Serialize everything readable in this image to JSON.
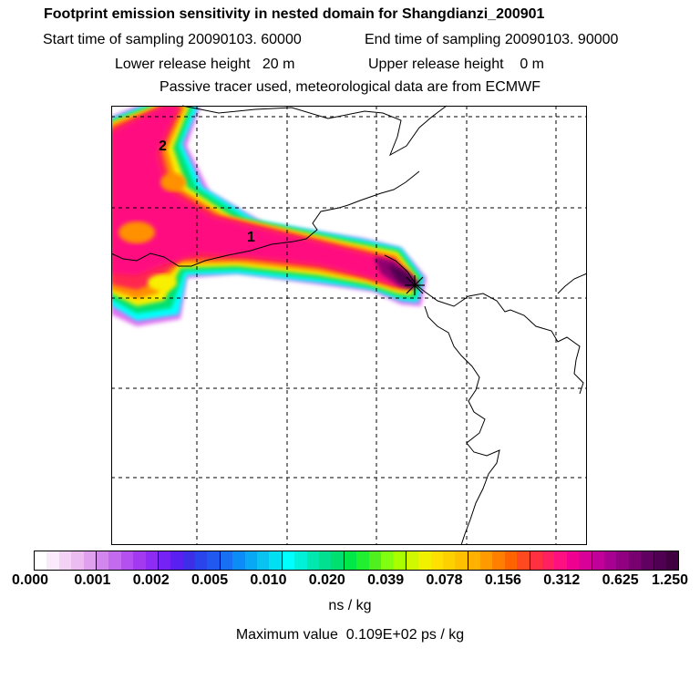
{
  "header": {
    "title": "Footprint emission sensitivity in nested domain for Shangdianzi_200901",
    "start_time": "Start time of sampling 20090103. 60000",
    "end_time": "End time of sampling 20090103. 90000",
    "lower_release": "Lower release height   20 m",
    "upper_release": "Upper release height    0 m",
    "tracer_note": "Passive tracer used, meteorological data are from ECMWF"
  },
  "map": {
    "labels": [
      "2",
      "1"
    ],
    "site_marker": "x-cross-marker"
  },
  "colorbar": {
    "tick_labels": [
      "0.000",
      "0.001",
      "0.002",
      "0.005",
      "0.010",
      "0.020",
      "0.039",
      "0.078",
      "0.156",
      "0.312",
      "0.625",
      "1.250"
    ],
    "colors": [
      "#ffffff",
      "#fbeafb",
      "#f4d2f6",
      "#ecbcf1",
      "#e0a0ee",
      "#d287ee",
      "#c46aee",
      "#b550f0",
      "#a33af0",
      "#8f2cf3",
      "#7422f5",
      "#5a20f2",
      "#3d2ee8",
      "#2a44ec",
      "#2058f0",
      "#1870f4",
      "#0c8cf6",
      "#08a8f4",
      "#0ac2f2",
      "#00e0f0",
      "#00ffff",
      "#00f0d8",
      "#00e8b0",
      "#00e090",
      "#00e070",
      "#00e848",
      "#20f030",
      "#50f020",
      "#80ff10",
      "#a8ff00",
      "#d0f800",
      "#f0f000",
      "#ffe000",
      "#ffd000",
      "#ffc000",
      "#ffb000",
      "#ff9a00",
      "#ff8000",
      "#ff6400",
      "#ff4a20",
      "#ff3040",
      "#ff2060",
      "#ff1080",
      "#f00090",
      "#d80098",
      "#c00098",
      "#a80090",
      "#900080",
      "#780070",
      "#600060",
      "#500050",
      "#400040"
    ],
    "units": "ns / kg"
  },
  "footer": {
    "max_value": "Maximum value  0.109E+02 ps / kg"
  }
}
